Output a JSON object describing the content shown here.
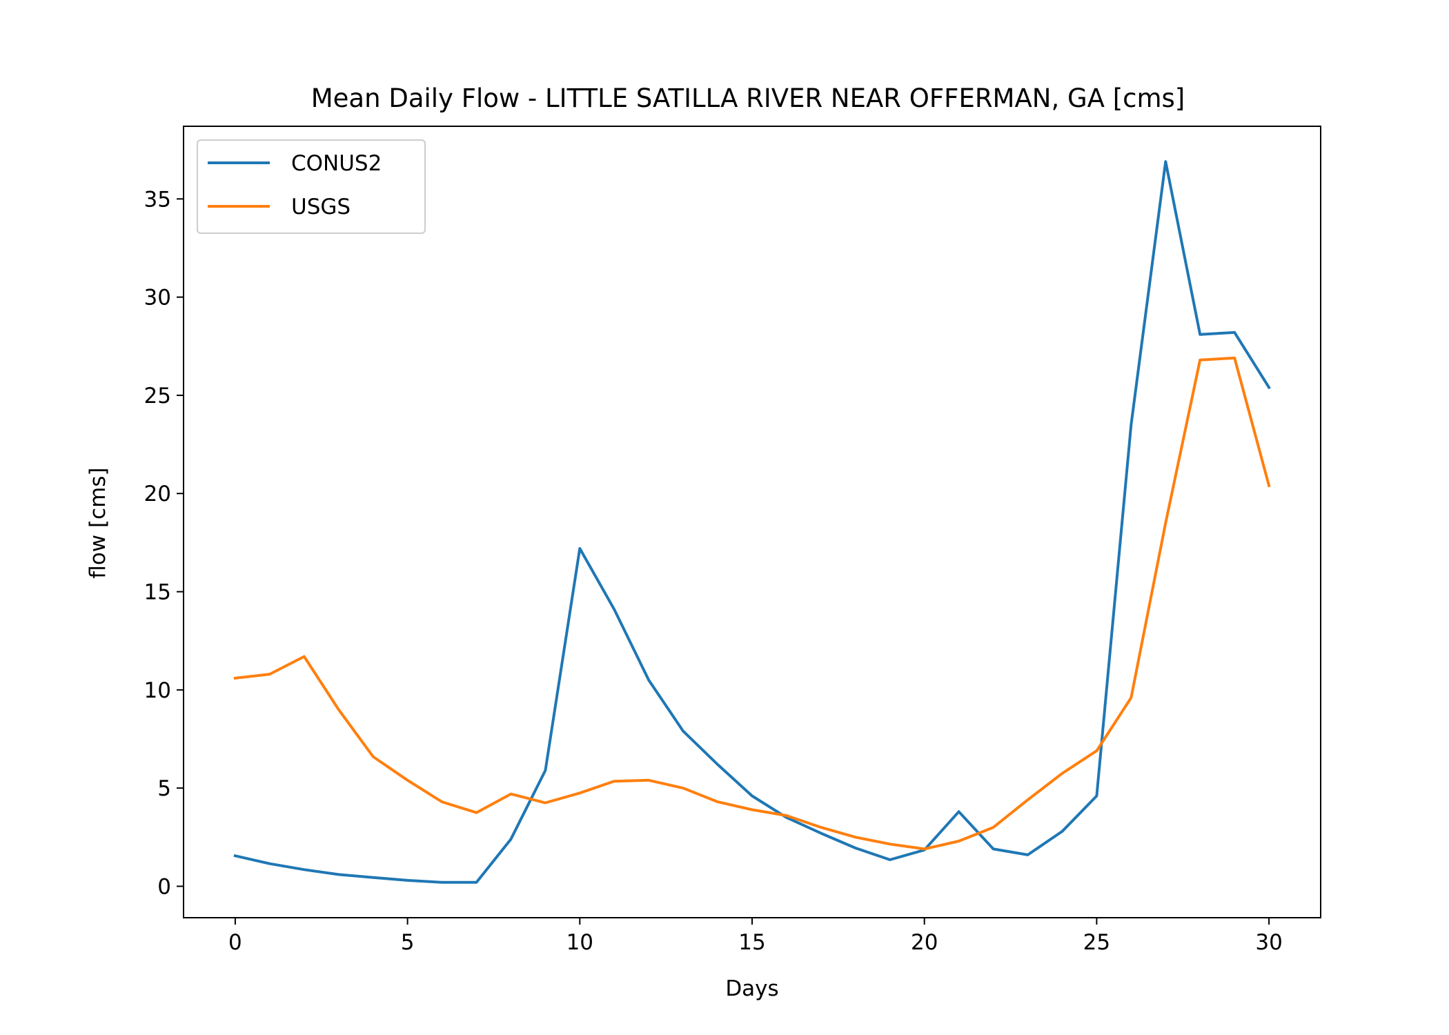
{
  "chart_data": {
    "type": "line",
    "title": "Mean Daily Flow - LITTLE SATILLA RIVER NEAR OFFERMAN, GA [cms]",
    "xlabel": "Days",
    "ylabel": "flow [cms]",
    "xlim": [
      -1.5,
      31.5
    ],
    "ylim": [
      -1.6,
      38.7
    ],
    "xticks": [
      0,
      5,
      10,
      15,
      20,
      25,
      30
    ],
    "yticks": [
      0,
      5,
      10,
      15,
      20,
      25,
      30,
      35
    ],
    "grid": false,
    "legend_position": "upper-left",
    "x": [
      0,
      1,
      2,
      3,
      4,
      5,
      6,
      7,
      8,
      9,
      10,
      11,
      12,
      13,
      14,
      15,
      16,
      17,
      18,
      19,
      20,
      21,
      22,
      23,
      24,
      25,
      26,
      27,
      28,
      29,
      30
    ],
    "series": [
      {
        "name": "CONUS2",
        "color": "#1f77b4",
        "values": [
          1.55,
          1.15,
          0.85,
          0.6,
          0.45,
          0.3,
          0.2,
          0.2,
          2.4,
          5.9,
          17.2,
          14.1,
          10.5,
          7.9,
          6.2,
          4.6,
          3.5,
          2.7,
          1.95,
          1.35,
          1.85,
          3.8,
          1.9,
          1.6,
          2.8,
          4.6,
          23.5,
          36.9,
          28.1,
          28.2,
          25.4
        ]
      },
      {
        "name": "USGS",
        "color": "#ff7f0e",
        "values": [
          10.6,
          10.8,
          11.7,
          9.0,
          6.6,
          5.4,
          4.3,
          3.75,
          4.7,
          4.25,
          4.75,
          5.35,
          5.4,
          5.0,
          4.3,
          3.9,
          3.6,
          3.0,
          2.5,
          2.15,
          1.9,
          2.3,
          3.0,
          4.4,
          5.75,
          6.9,
          9.6,
          18.5,
          26.8,
          26.9,
          20.4
        ]
      }
    ]
  }
}
